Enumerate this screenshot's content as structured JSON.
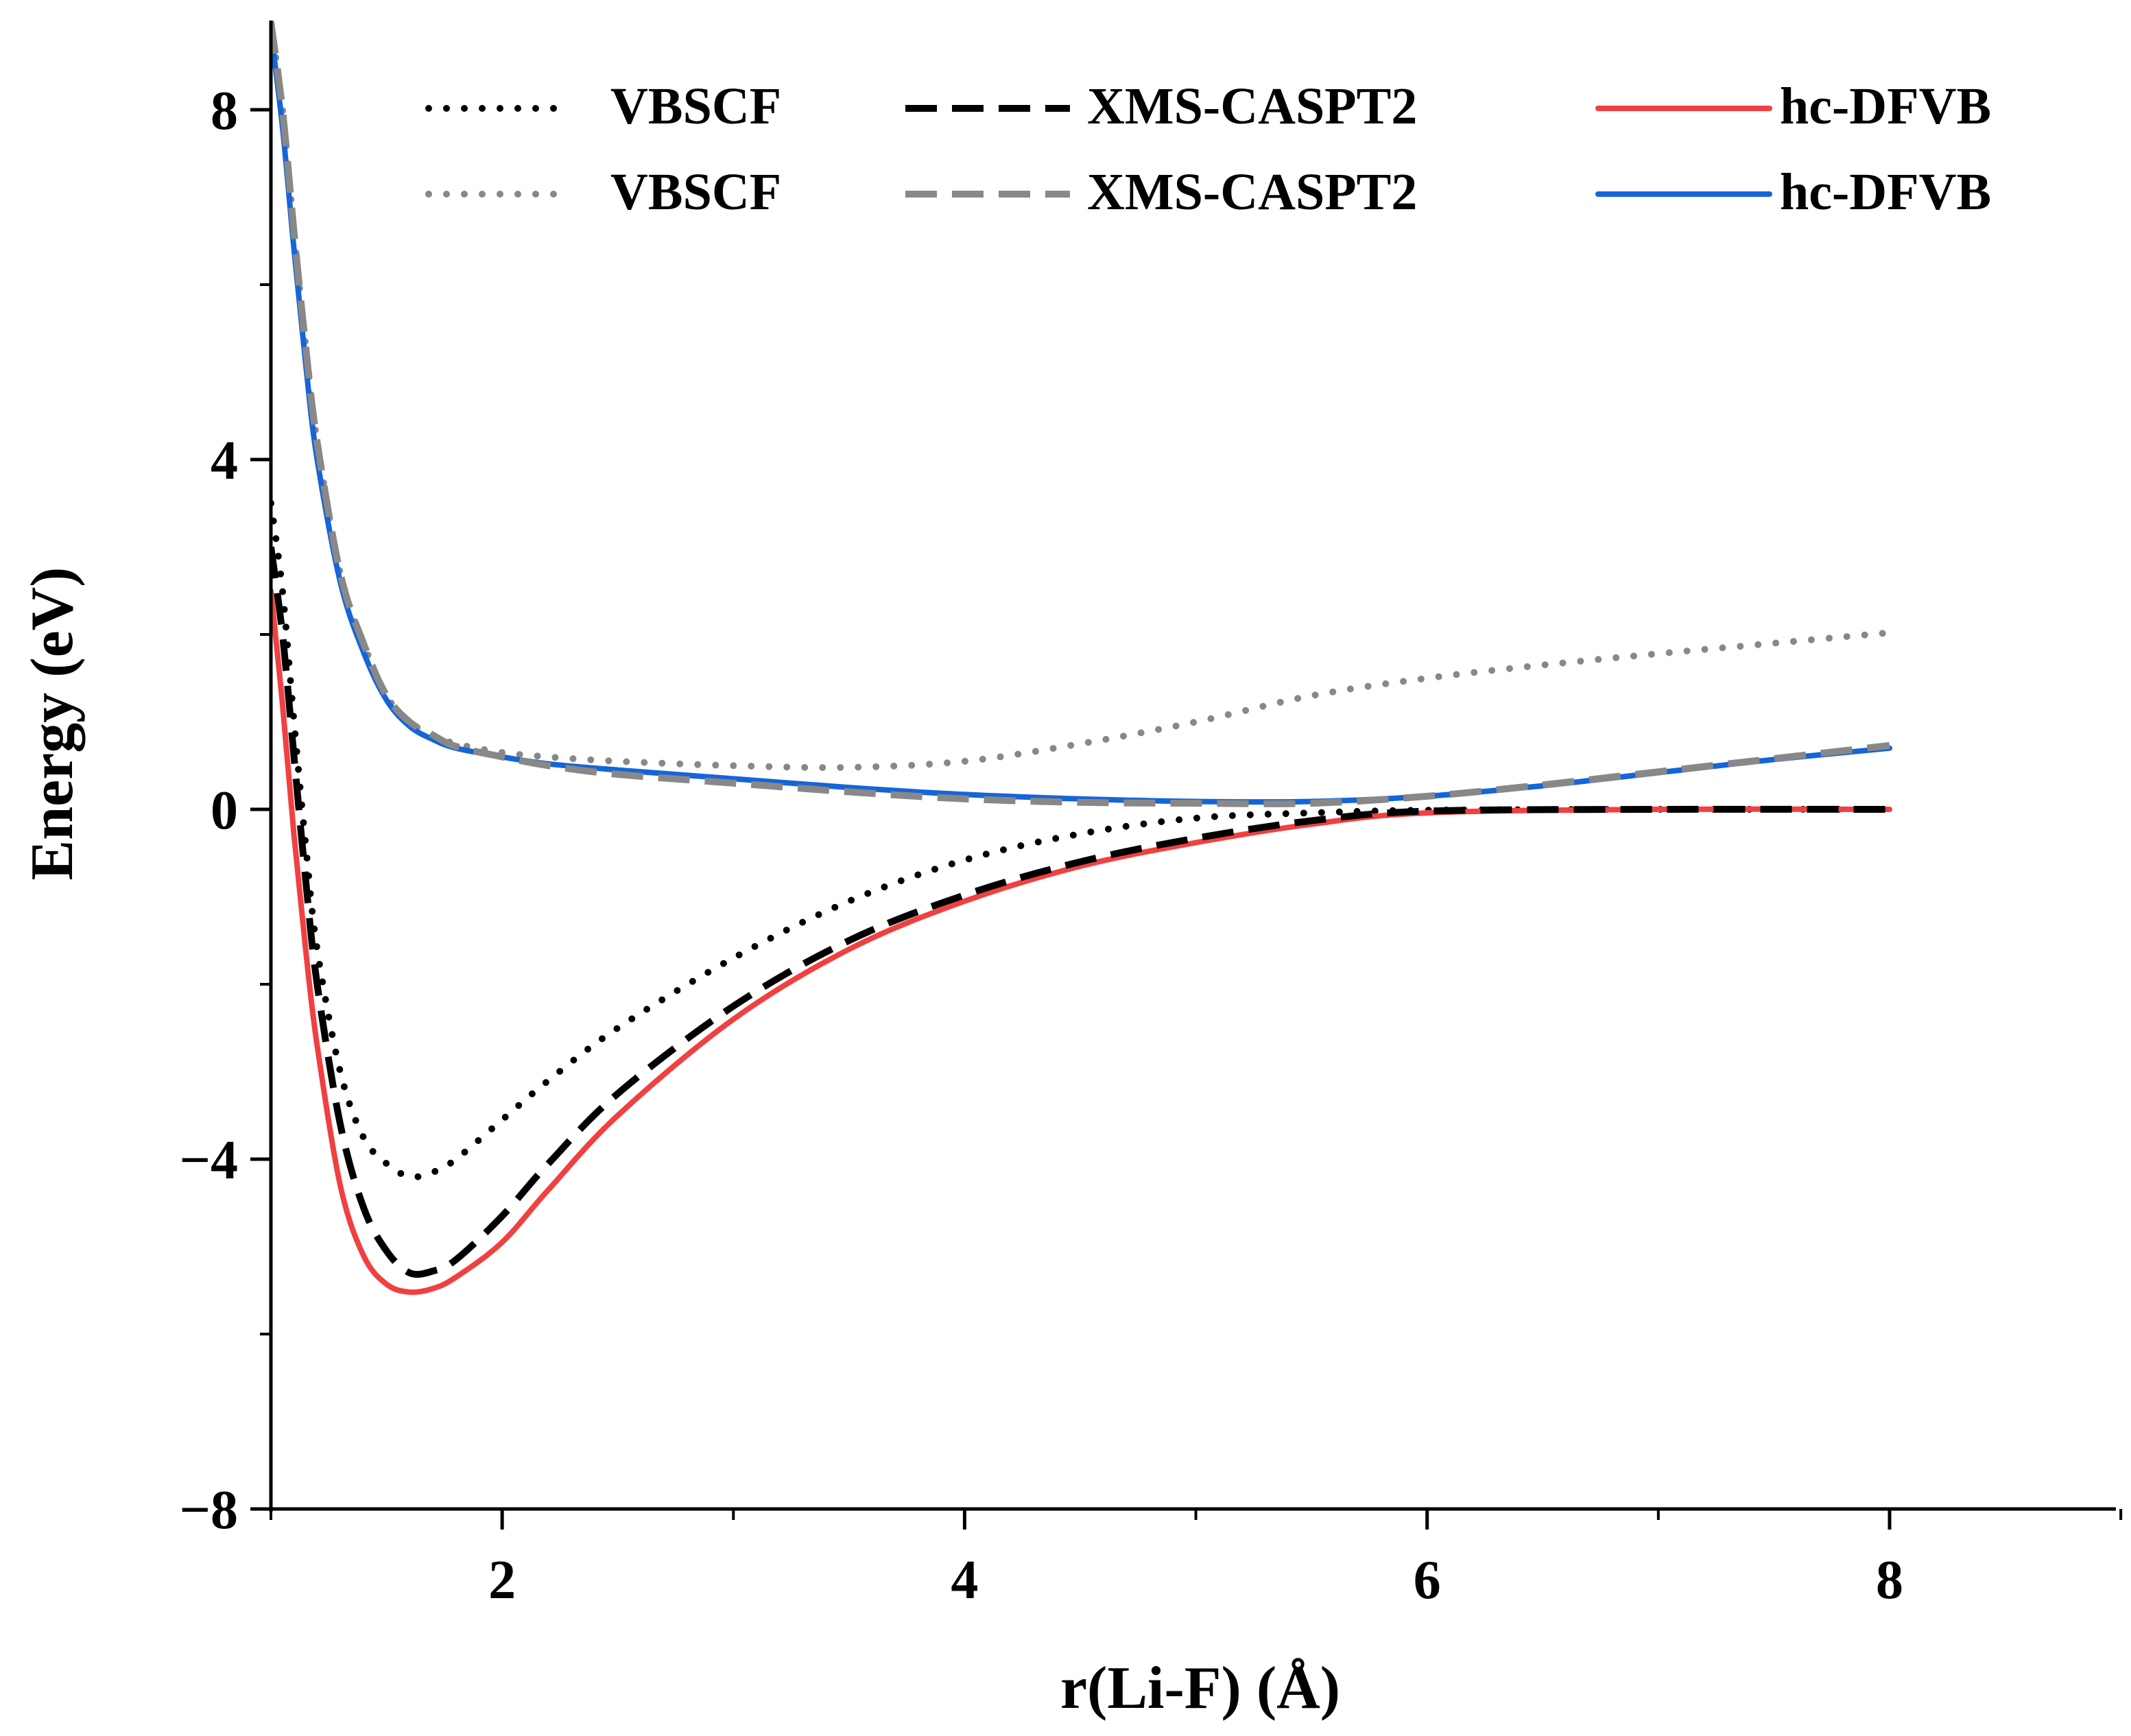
{
  "chart_data": {
    "type": "line",
    "title": "",
    "xlabel": "r(Li-F) (Å)",
    "ylabel": "Energy (eV)",
    "xlim": [
      1.0,
      9.0
    ],
    "ylim": [
      -8,
      9
    ],
    "xticks": [
      2,
      4,
      6,
      8
    ],
    "xtick_labels": [
      "2",
      "4",
      "6",
      "8"
    ],
    "yticks": [
      -8,
      -4,
      0,
      4,
      8
    ],
    "ytick_labels": [
      "−8",
      "−4",
      "0",
      "4",
      "8"
    ],
    "x_minor_step": 1,
    "y_minor_step": 2,
    "legend_position": "top-right",
    "series": [
      {
        "name": "VBSCF",
        "state": "ground",
        "color": "#000000",
        "style": "dotted",
        "x": [
          1.0,
          1.05,
          1.1,
          1.15,
          1.2,
          1.3,
          1.4,
          1.5,
          1.6,
          1.7,
          1.8,
          2.0,
          2.2,
          2.5,
          3.0,
          3.5,
          4.0,
          4.5,
          5.0,
          5.5,
          6.0,
          7.0,
          8.0
        ],
        "y": [
          3.5,
          2.5,
          1.0,
          -0.4,
          -1.6,
          -3.0,
          -3.75,
          -4.05,
          -4.2,
          -4.15,
          -4.0,
          -3.55,
          -3.1,
          -2.5,
          -1.7,
          -1.05,
          -0.58,
          -0.28,
          -0.1,
          -0.04,
          -0.01,
          0.0,
          0.0
        ]
      },
      {
        "name": "XMS-CASPT2",
        "state": "ground",
        "color": "#000000",
        "style": "dashed",
        "x": [
          1.0,
          1.05,
          1.1,
          1.15,
          1.2,
          1.3,
          1.4,
          1.5,
          1.6,
          1.7,
          1.8,
          2.0,
          2.2,
          2.5,
          3.0,
          3.5,
          4.0,
          4.5,
          5.0,
          5.5,
          6.0,
          7.0,
          8.0
        ],
        "y": [
          3.0,
          2.0,
          0.6,
          -0.8,
          -2.0,
          -3.6,
          -4.55,
          -5.05,
          -5.3,
          -5.28,
          -5.15,
          -4.65,
          -4.05,
          -3.25,
          -2.25,
          -1.5,
          -0.98,
          -0.6,
          -0.33,
          -0.13,
          -0.02,
          0.0,
          0.0
        ]
      },
      {
        "name": "hc-DFVB",
        "state": "ground",
        "color": "#f04040",
        "style": "solid",
        "x": [
          1.0,
          1.05,
          1.1,
          1.15,
          1.2,
          1.3,
          1.4,
          1.5,
          1.6,
          1.7,
          1.8,
          2.0,
          2.2,
          2.5,
          3.0,
          3.5,
          4.0,
          4.5,
          5.0,
          5.5,
          6.0,
          7.0,
          8.0
        ],
        "y": [
          2.5,
          1.2,
          -0.3,
          -1.6,
          -2.7,
          -4.3,
          -5.1,
          -5.43,
          -5.52,
          -5.48,
          -5.35,
          -4.95,
          -4.35,
          -3.5,
          -2.4,
          -1.6,
          -1.05,
          -0.65,
          -0.38,
          -0.17,
          -0.04,
          0.0,
          0.0
        ]
      },
      {
        "name": "VBSCF",
        "state": "excited",
        "color": "#888888",
        "style": "dotted",
        "x": [
          1.0,
          1.05,
          1.1,
          1.15,
          1.2,
          1.3,
          1.4,
          1.5,
          1.6,
          1.7,
          1.8,
          2.0,
          2.2,
          2.5,
          3.0,
          3.5,
          4.0,
          4.5,
          5.0,
          5.5,
          6.0,
          6.5,
          7.0,
          7.5,
          8.0
        ],
        "y": [
          9.0,
          8.0,
          6.6,
          5.3,
          4.2,
          2.7,
          1.9,
          1.3,
          1.0,
          0.85,
          0.75,
          0.65,
          0.6,
          0.55,
          0.5,
          0.48,
          0.55,
          0.75,
          1.0,
          1.3,
          1.5,
          1.65,
          1.78,
          1.9,
          2.02
        ]
      },
      {
        "name": "XMS-CASPT2",
        "state": "excited",
        "color": "#888888",
        "style": "dashed",
        "x": [
          1.0,
          1.05,
          1.1,
          1.15,
          1.2,
          1.3,
          1.4,
          1.5,
          1.6,
          1.7,
          1.8,
          2.0,
          2.2,
          2.5,
          3.0,
          3.5,
          4.0,
          4.5,
          5.0,
          5.5,
          6.0,
          6.5,
          7.0,
          7.5,
          8.0
        ],
        "y": [
          9.0,
          8.0,
          6.6,
          5.3,
          4.2,
          2.7,
          1.9,
          1.3,
          1.0,
          0.85,
          0.72,
          0.6,
          0.5,
          0.4,
          0.3,
          0.2,
          0.12,
          0.08,
          0.07,
          0.07,
          0.15,
          0.28,
          0.43,
          0.58,
          0.73
        ]
      },
      {
        "name": "hc-DFVB",
        "state": "excited",
        "color": "#1565d8",
        "style": "solid",
        "x": [
          1.0,
          1.05,
          1.1,
          1.15,
          1.2,
          1.3,
          1.4,
          1.5,
          1.6,
          1.7,
          1.8,
          2.0,
          2.2,
          2.5,
          3.0,
          3.5,
          4.0,
          4.5,
          5.0,
          5.5,
          6.0,
          6.5,
          7.0,
          7.5,
          8.0
        ],
        "y": [
          8.9,
          7.8,
          6.4,
          5.1,
          4.0,
          2.6,
          1.8,
          1.25,
          0.95,
          0.8,
          0.7,
          0.6,
          0.52,
          0.45,
          0.35,
          0.25,
          0.17,
          0.12,
          0.09,
          0.09,
          0.15,
          0.27,
          0.42,
          0.57,
          0.7
        ]
      }
    ]
  }
}
